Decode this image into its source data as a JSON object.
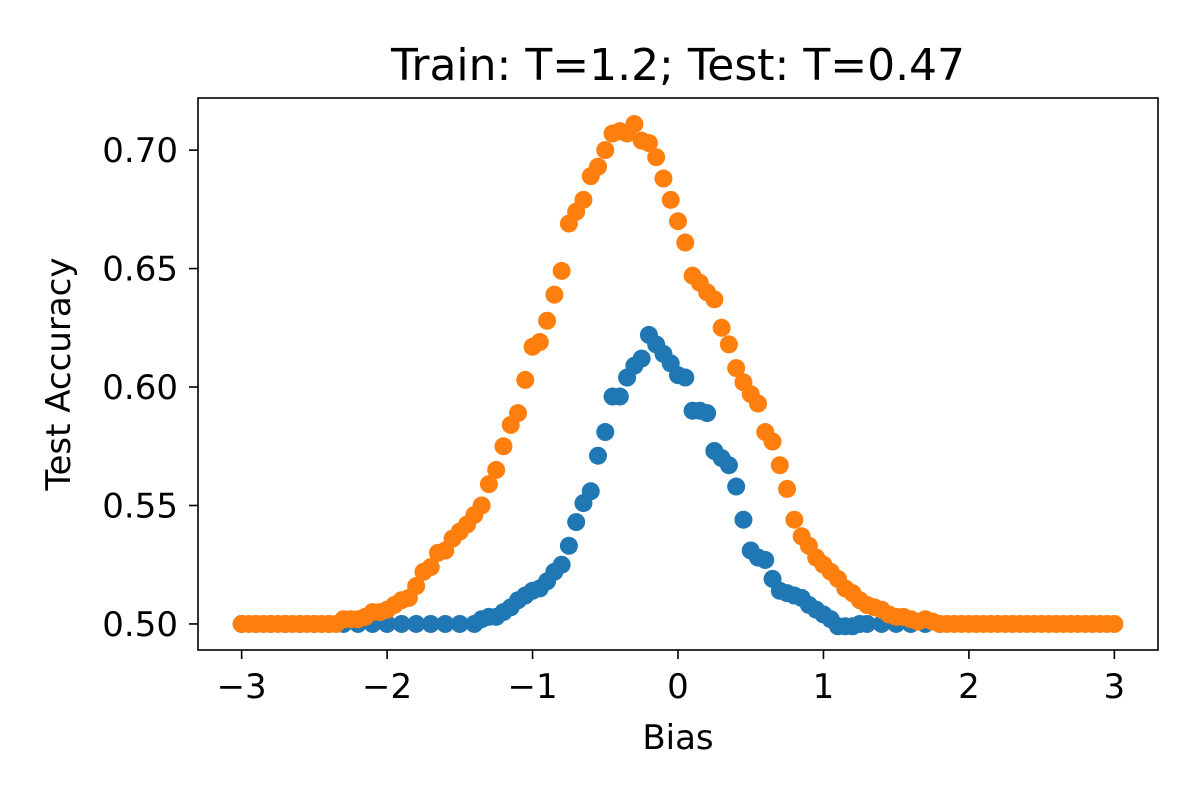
{
  "chart_data": {
    "type": "scatter",
    "title": "Train: T=1.2; Test: T=0.47",
    "xlabel": "Bias",
    "ylabel": "Test Accuracy",
    "xlim": [
      -3.3,
      3.3
    ],
    "ylim": [
      0.489,
      0.722
    ],
    "xticks": [
      -3,
      -2,
      -1,
      0,
      1,
      2,
      3
    ],
    "xtick_labels": [
      "−3",
      "−2",
      "−1",
      "0",
      "1",
      "2",
      "3"
    ],
    "yticks": [
      0.5,
      0.55,
      0.6,
      0.65,
      0.7
    ],
    "ytick_labels": [
      "0.50",
      "0.55",
      "0.60",
      "0.65",
      "0.70"
    ],
    "grid": false,
    "legend": "none",
    "series": [
      {
        "color": "#1f77b4",
        "points": [
          [
            -3.0,
            0.5
          ],
          [
            -2.9,
            0.5
          ],
          [
            -2.8,
            0.5
          ],
          [
            -2.7,
            0.5
          ],
          [
            -2.6,
            0.5
          ],
          [
            -2.5,
            0.5
          ],
          [
            -2.4,
            0.5
          ],
          [
            -2.3,
            0.5
          ],
          [
            -2.2,
            0.5
          ],
          [
            -2.1,
            0.5
          ],
          [
            -2.0,
            0.5
          ],
          [
            -1.9,
            0.5
          ],
          [
            -1.8,
            0.5
          ],
          [
            -1.7,
            0.5
          ],
          [
            -1.6,
            0.5
          ],
          [
            -1.5,
            0.5
          ],
          [
            -1.4,
            0.5
          ],
          [
            -1.35,
            0.502
          ],
          [
            -1.3,
            0.503
          ],
          [
            -1.25,
            0.503
          ],
          [
            -1.2,
            0.505
          ],
          [
            -1.15,
            0.507
          ],
          [
            -1.1,
            0.51
          ],
          [
            -1.05,
            0.512
          ],
          [
            -1.0,
            0.514
          ],
          [
            -0.95,
            0.515
          ],
          [
            -0.9,
            0.518
          ],
          [
            -0.85,
            0.522
          ],
          [
            -0.8,
            0.525
          ],
          [
            -0.75,
            0.533
          ],
          [
            -0.7,
            0.543
          ],
          [
            -0.65,
            0.551
          ],
          [
            -0.6,
            0.556
          ],
          [
            -0.55,
            0.571
          ],
          [
            -0.5,
            0.581
          ],
          [
            -0.45,
            0.596
          ],
          [
            -0.4,
            0.596
          ],
          [
            -0.35,
            0.604
          ],
          [
            -0.3,
            0.609
          ],
          [
            -0.25,
            0.612
          ],
          [
            -0.2,
            0.622
          ],
          [
            -0.15,
            0.618
          ],
          [
            -0.1,
            0.614
          ],
          [
            -0.05,
            0.61
          ],
          [
            0.0,
            0.605
          ],
          [
            0.05,
            0.604
          ],
          [
            0.1,
            0.59
          ],
          [
            0.15,
            0.59
          ],
          [
            0.2,
            0.589
          ],
          [
            0.25,
            0.573
          ],
          [
            0.3,
            0.57
          ],
          [
            0.35,
            0.567
          ],
          [
            0.4,
            0.558
          ],
          [
            0.45,
            0.544
          ],
          [
            0.5,
            0.531
          ],
          [
            0.55,
            0.528
          ],
          [
            0.6,
            0.527
          ],
          [
            0.65,
            0.519
          ],
          [
            0.7,
            0.514
          ],
          [
            0.75,
            0.513
          ],
          [
            0.8,
            0.512
          ],
          [
            0.85,
            0.511
          ],
          [
            0.9,
            0.508
          ],
          [
            0.95,
            0.506
          ],
          [
            1.0,
            0.504
          ],
          [
            1.05,
            0.502
          ],
          [
            1.1,
            0.499
          ],
          [
            1.15,
            0.499
          ],
          [
            1.2,
            0.499
          ],
          [
            1.25,
            0.5
          ],
          [
            1.3,
            0.5
          ],
          [
            1.4,
            0.5
          ],
          [
            1.5,
            0.5
          ],
          [
            1.6,
            0.5
          ],
          [
            1.7,
            0.5
          ],
          [
            1.8,
            0.5
          ]
        ]
      },
      {
        "color": "#ff7f0e",
        "points": [
          [
            -3.0,
            0.5
          ],
          [
            -2.95,
            0.5
          ],
          [
            -2.9,
            0.5
          ],
          [
            -2.85,
            0.5
          ],
          [
            -2.8,
            0.5
          ],
          [
            -2.75,
            0.5
          ],
          [
            -2.7,
            0.5
          ],
          [
            -2.65,
            0.5
          ],
          [
            -2.6,
            0.5
          ],
          [
            -2.55,
            0.5
          ],
          [
            -2.5,
            0.5
          ],
          [
            -2.45,
            0.5
          ],
          [
            -2.4,
            0.5
          ],
          [
            -2.35,
            0.5
          ],
          [
            -2.3,
            0.502
          ],
          [
            -2.25,
            0.502
          ],
          [
            -2.2,
            0.502
          ],
          [
            -2.15,
            0.503
          ],
          [
            -2.1,
            0.505
          ],
          [
            -2.05,
            0.505
          ],
          [
            -2.0,
            0.506
          ],
          [
            -1.95,
            0.508
          ],
          [
            -1.9,
            0.51
          ],
          [
            -1.85,
            0.511
          ],
          [
            -1.8,
            0.516
          ],
          [
            -1.75,
            0.522
          ],
          [
            -1.7,
            0.524
          ],
          [
            -1.65,
            0.53
          ],
          [
            -1.6,
            0.531
          ],
          [
            -1.55,
            0.536
          ],
          [
            -1.5,
            0.539
          ],
          [
            -1.45,
            0.542
          ],
          [
            -1.4,
            0.546
          ],
          [
            -1.35,
            0.55
          ],
          [
            -1.3,
            0.559
          ],
          [
            -1.25,
            0.565
          ],
          [
            -1.2,
            0.575
          ],
          [
            -1.15,
            0.584
          ],
          [
            -1.1,
            0.589
          ],
          [
            -1.05,
            0.603
          ],
          [
            -1.0,
            0.617
          ],
          [
            -0.95,
            0.619
          ],
          [
            -0.9,
            0.628
          ],
          [
            -0.85,
            0.639
          ],
          [
            -0.8,
            0.649
          ],
          [
            -0.75,
            0.669
          ],
          [
            -0.7,
            0.674
          ],
          [
            -0.65,
            0.679
          ],
          [
            -0.6,
            0.689
          ],
          [
            -0.55,
            0.693
          ],
          [
            -0.5,
            0.7
          ],
          [
            -0.45,
            0.707
          ],
          [
            -0.4,
            0.708
          ],
          [
            -0.35,
            0.707
          ],
          [
            -0.3,
            0.711
          ],
          [
            -0.25,
            0.704
          ],
          [
            -0.2,
            0.703
          ],
          [
            -0.15,
            0.697
          ],
          [
            -0.1,
            0.688
          ],
          [
            -0.05,
            0.679
          ],
          [
            0.0,
            0.67
          ],
          [
            0.05,
            0.661
          ],
          [
            0.1,
            0.647
          ],
          [
            0.15,
            0.644
          ],
          [
            0.2,
            0.64
          ],
          [
            0.25,
            0.637
          ],
          [
            0.3,
            0.625
          ],
          [
            0.35,
            0.618
          ],
          [
            0.4,
            0.608
          ],
          [
            0.45,
            0.602
          ],
          [
            0.5,
            0.597
          ],
          [
            0.55,
            0.593
          ],
          [
            0.6,
            0.581
          ],
          [
            0.65,
            0.577
          ],
          [
            0.7,
            0.567
          ],
          [
            0.75,
            0.557
          ],
          [
            0.8,
            0.544
          ],
          [
            0.85,
            0.537
          ],
          [
            0.9,
            0.533
          ],
          [
            0.95,
            0.528
          ],
          [
            1.0,
            0.525
          ],
          [
            1.05,
            0.522
          ],
          [
            1.1,
            0.519
          ],
          [
            1.15,
            0.515
          ],
          [
            1.2,
            0.513
          ],
          [
            1.25,
            0.51
          ],
          [
            1.3,
            0.508
          ],
          [
            1.35,
            0.507
          ],
          [
            1.4,
            0.506
          ],
          [
            1.45,
            0.504
          ],
          [
            1.5,
            0.503
          ],
          [
            1.55,
            0.503
          ],
          [
            1.6,
            0.502
          ],
          [
            1.65,
            0.501
          ],
          [
            1.7,
            0.502
          ],
          [
            1.75,
            0.501
          ],
          [
            1.8,
            0.5
          ],
          [
            1.85,
            0.5
          ],
          [
            1.9,
            0.5
          ],
          [
            1.95,
            0.5
          ],
          [
            2.0,
            0.5
          ],
          [
            2.05,
            0.5
          ],
          [
            2.1,
            0.5
          ],
          [
            2.15,
            0.5
          ],
          [
            2.2,
            0.5
          ],
          [
            2.25,
            0.5
          ],
          [
            2.3,
            0.5
          ],
          [
            2.35,
            0.5
          ],
          [
            2.4,
            0.5
          ],
          [
            2.45,
            0.5
          ],
          [
            2.5,
            0.5
          ],
          [
            2.55,
            0.5
          ],
          [
            2.6,
            0.5
          ],
          [
            2.65,
            0.5
          ],
          [
            2.7,
            0.5
          ],
          [
            2.75,
            0.5
          ],
          [
            2.8,
            0.5
          ],
          [
            2.85,
            0.5
          ],
          [
            2.9,
            0.5
          ],
          [
            2.95,
            0.5
          ],
          [
            3.0,
            0.5
          ]
        ]
      }
    ]
  }
}
